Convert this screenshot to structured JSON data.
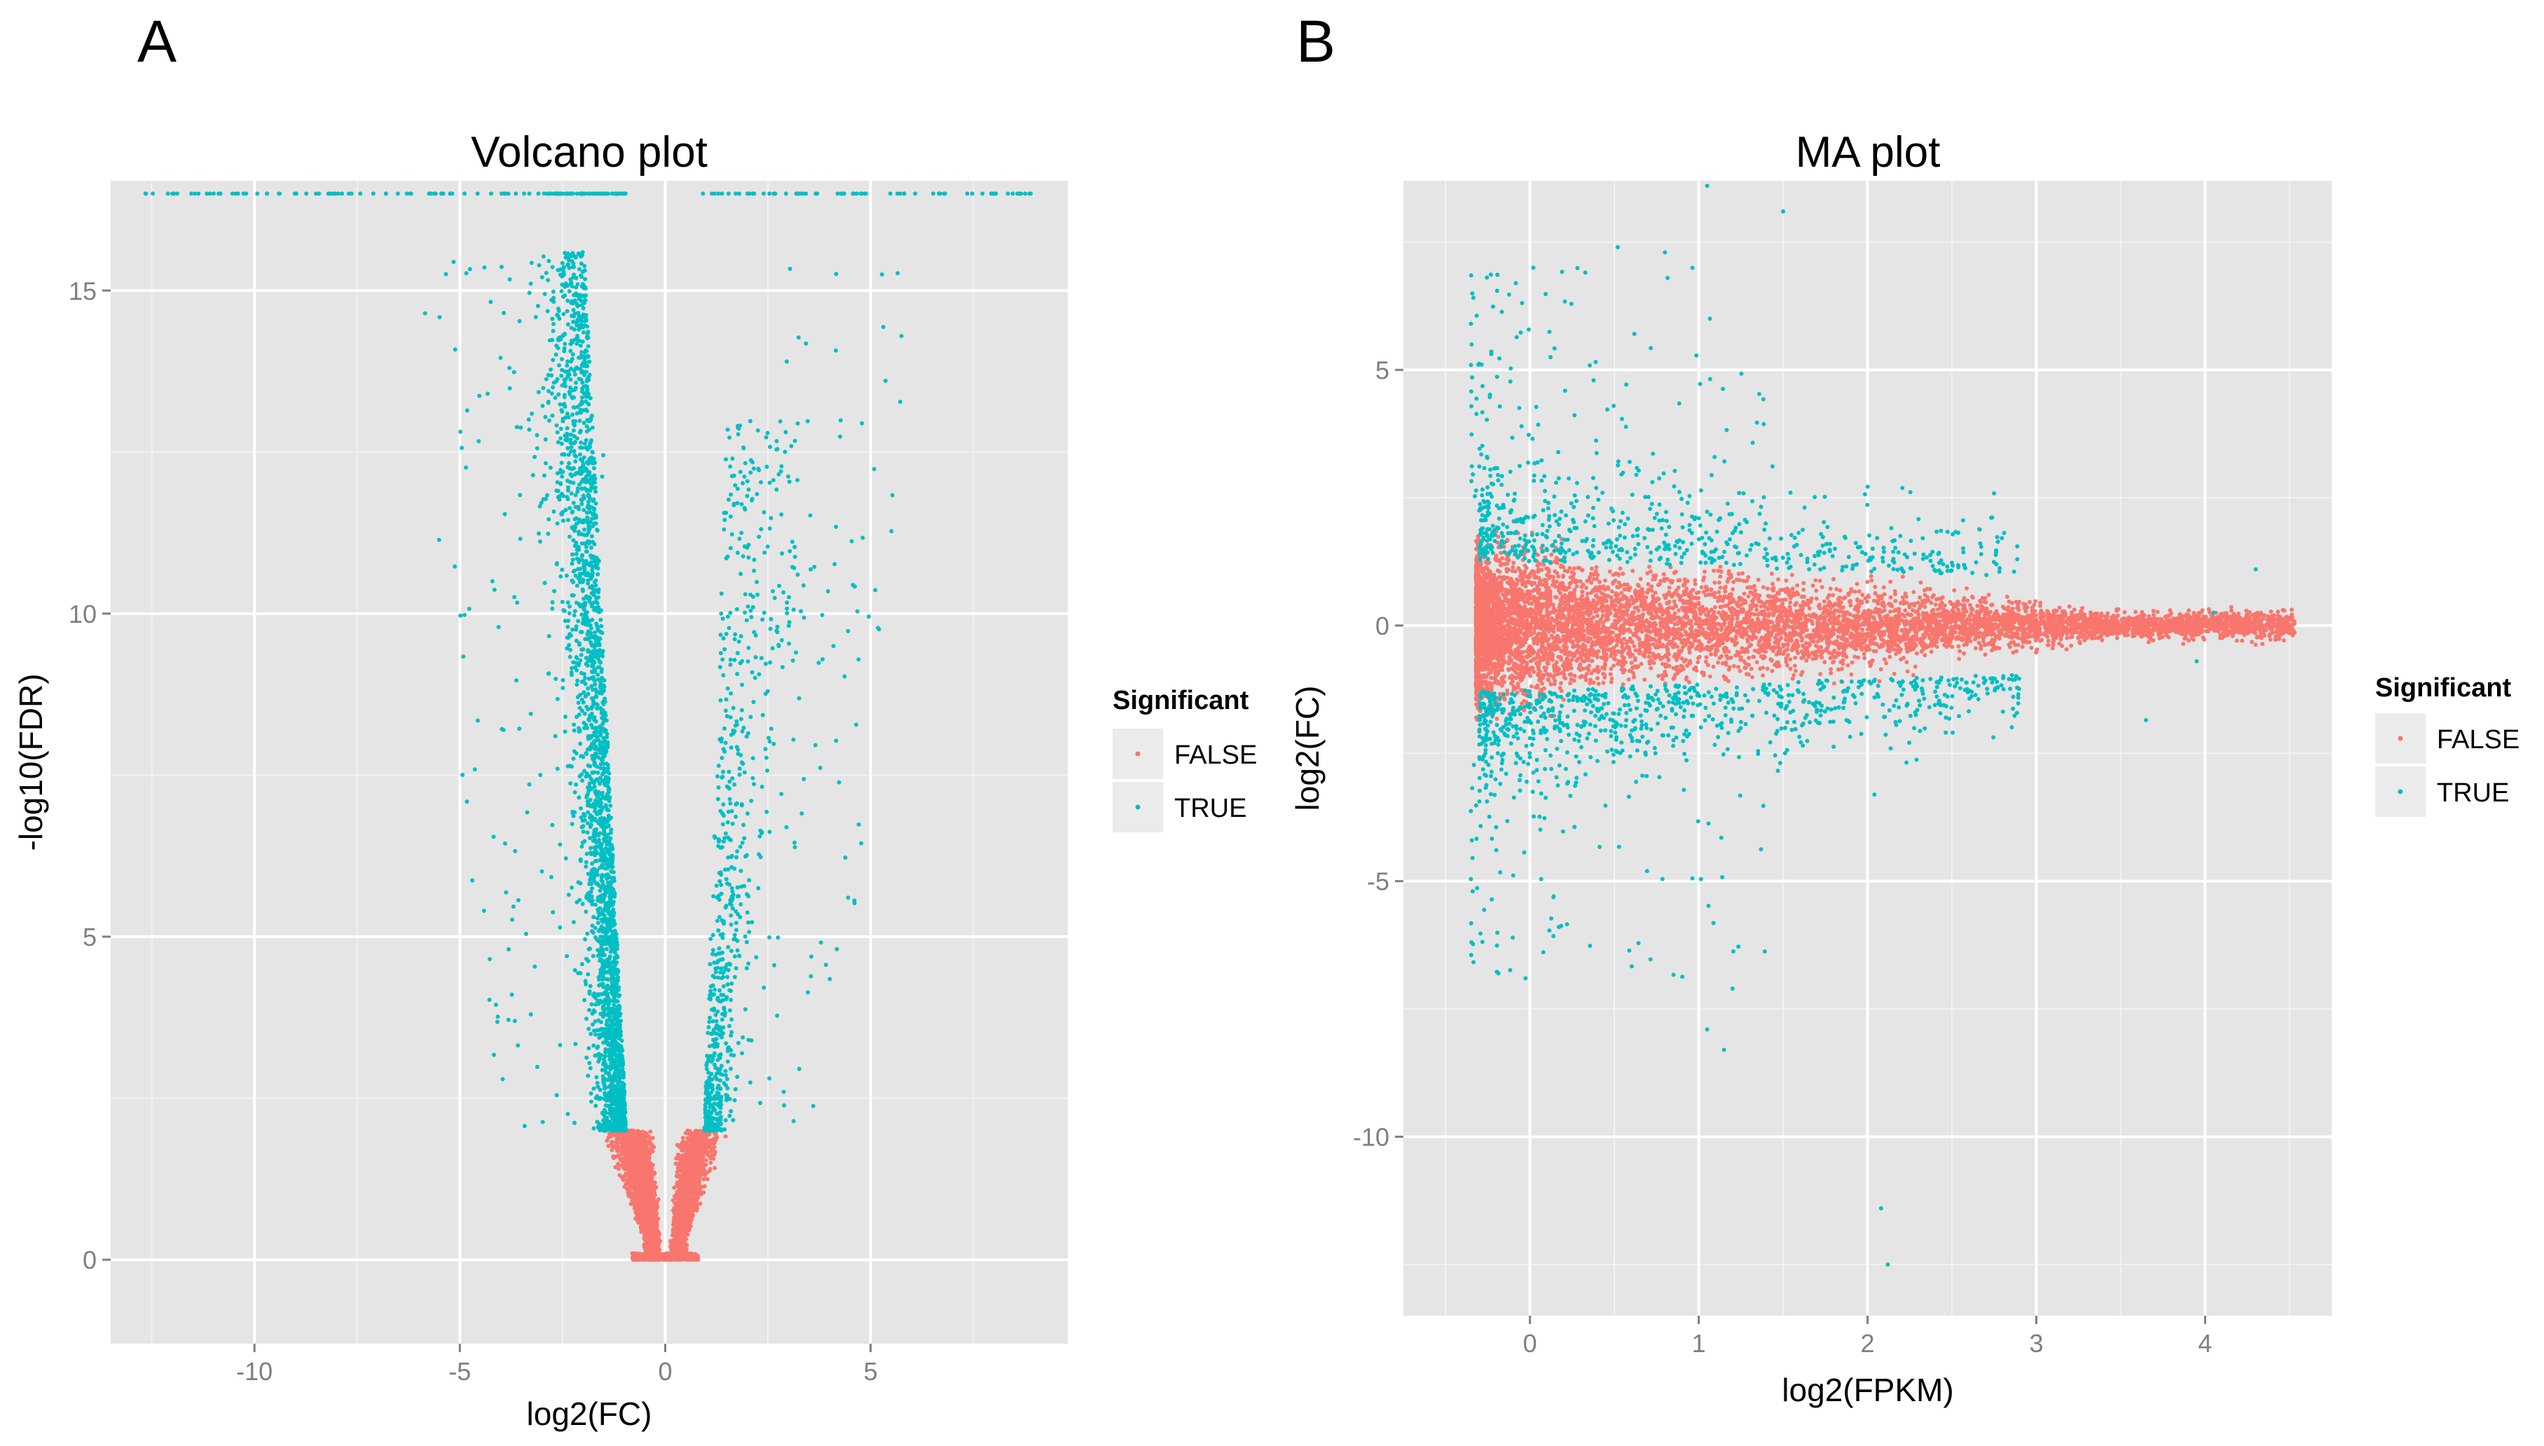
{
  "figure": {
    "panel_labels": [
      "A",
      "B"
    ]
  },
  "colors": {
    "panel_bg": "#e5e5e5",
    "grid_major": "#ffffff",
    "grid_minor": "#f2f2f2",
    "false_color": "#f8766d",
    "true_color": "#00bfc4",
    "tick_color": "#7f7f7f"
  },
  "chart_data": [
    {
      "type": "scatter",
      "title": "Volcano plot",
      "xlabel": "log2(FC)",
      "ylabel": "-log10(FDR)",
      "xlim": [
        -13.5,
        9.8
      ],
      "ylim": [
        -1.3,
        16.7
      ],
      "xticks": [
        -10,
        -5,
        0,
        5
      ],
      "yticks": [
        0,
        5,
        10,
        15
      ],
      "legend": {
        "title": "Significant",
        "entries": [
          "FALSE",
          "TRUE"
        ],
        "position": "right"
      },
      "series": [
        {
          "name": "FALSE",
          "description": "non-significant genes forming V-shaped base near x=0, -log10(FDR) below about 2"
        },
        {
          "name": "TRUE",
          "description": "significant genes with FDR-based cutoff, spreading up both arms of the volcano, capped at about 16.7"
        }
      ]
    },
    {
      "type": "scatter",
      "title": "MA plot",
      "xlabel": "log2(FPKM)",
      "ylabel": "log2(FC)",
      "xlim": [
        -0.75,
        4.75
      ],
      "ylim": [
        -13.5,
        8.7
      ],
      "xticks": [
        0,
        1,
        2,
        3,
        4
      ],
      "yticks": [
        -10,
        -5,
        0,
        5
      ],
      "legend": {
        "title": "Significant",
        "entries": [
          "FALSE",
          "TRUE"
        ],
        "position": "right"
      },
      "series": [
        {
          "name": "FALSE",
          "description": "dense cloud around log2(FC)=0 narrowing as log2(FPKM) increases"
        },
        {
          "name": "TRUE",
          "description": "significant genes above and below the main cloud, mostly at low log2(FPKM)"
        }
      ]
    }
  ]
}
